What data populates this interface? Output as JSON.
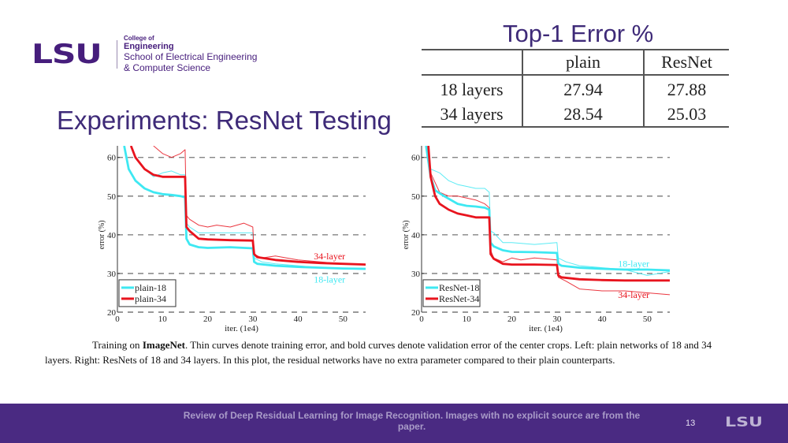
{
  "header": {
    "logo": {
      "mark": "LSU",
      "college_prefix": "College of",
      "college_name": "Engineering",
      "school_line1": "School of Electrical Engineering",
      "school_line2": "& Computer Science"
    },
    "slide_title": "Experiments: ResNet Testing"
  },
  "table": {
    "title": "Top-1 Error %",
    "columns": [
      "",
      "plain",
      "ResNet"
    ],
    "rows": [
      {
        "label": "18 layers",
        "plain": "27.94",
        "resnet": "27.88"
      },
      {
        "label": "34 layers",
        "plain": "28.54",
        "resnet": "25.03"
      }
    ],
    "bold_cell": "34 layers / ResNet"
  },
  "colors": {
    "brand_purple": "#461d7c",
    "footer_bg": "#4a2a82",
    "series_18": "#3ee8f2",
    "series_34": "#e8141e"
  },
  "chart_data": [
    {
      "type": "line",
      "title": "",
      "xlabel": "iter. (1e4)",
      "ylabel": "error (%)",
      "xlim": [
        0,
        55
      ],
      "ylim": [
        20,
        63
      ],
      "x_ticks": [
        0,
        10,
        20,
        30,
        40,
        50
      ],
      "y_ticks": [
        20,
        30,
        40,
        50,
        60
      ],
      "grid": "horizontal dashed",
      "legend": {
        "placement": "bottom-left",
        "entries": [
          "plain-18",
          "plain-34"
        ]
      },
      "annotations": [
        {
          "text": "34-layer",
          "x": 47,
          "y": 34.5,
          "color": "#e8141e"
        },
        {
          "text": "18-layer",
          "x": 47,
          "y": 28.5,
          "color": "#3ee8f2"
        }
      ],
      "series": [
        {
          "name": "plain-18 (val)",
          "style": "bold",
          "color": "#3ee8f2",
          "x": [
            1.5,
            2.5,
            4,
            6,
            8,
            10,
            12,
            14,
            15,
            15.3,
            16,
            18,
            20,
            25,
            30,
            30.3,
            31,
            35,
            40,
            45,
            50,
            55
          ],
          "y": [
            63,
            57,
            54,
            52,
            51,
            50.5,
            50.3,
            50,
            49.7,
            39,
            37.5,
            36.8,
            36.6,
            36.8,
            36.5,
            33,
            32.5,
            32,
            31.7,
            31.5,
            31.3,
            31.2
          ]
        },
        {
          "name": "plain-18 (train)",
          "style": "thin",
          "color": "#3ee8f2",
          "x": [
            6,
            8,
            10,
            12,
            14,
            15,
            15.3,
            16,
            18,
            20,
            25,
            30,
            30.3,
            32,
            35,
            40,
            45,
            50,
            55
          ],
          "y": [
            57,
            55,
            56,
            56.5,
            55.5,
            55.5,
            43,
            42,
            40.5,
            40.5,
            40.5,
            40.5,
            34,
            33,
            32.5,
            32,
            31.5,
            31.2,
            31
          ],
          "note": "partially hidden"
        },
        {
          "name": "plain-34 (val)",
          "style": "bold",
          "color": "#e8141e",
          "x": [
            3,
            4,
            6,
            8,
            10,
            12,
            14,
            15,
            15.3,
            16,
            18,
            20,
            25,
            30,
            30.3,
            31,
            35,
            40,
            45,
            50,
            55
          ],
          "y": [
            63,
            60,
            57,
            55.5,
            55,
            55,
            55,
            55,
            42,
            41,
            39,
            38.8,
            38.6,
            38.5,
            35,
            34.2,
            33.5,
            33,
            32.7,
            32.5,
            32.3
          ]
        },
        {
          "name": "plain-34 (train)",
          "style": "thin",
          "color": "#e8141e",
          "x": [
            8,
            10,
            12,
            14,
            15,
            15.3,
            16,
            18,
            20,
            22,
            25,
            28,
            30,
            30.3,
            32,
            35,
            40,
            45,
            50,
            55
          ],
          "y": [
            63,
            61,
            60,
            61,
            62,
            45,
            44,
            42.5,
            42,
            42.5,
            42,
            43,
            42,
            35,
            34,
            34.5,
            33.5,
            33,
            32.5,
            32.2
          ]
        }
      ]
    },
    {
      "type": "line",
      "title": "",
      "xlabel": "iter. (1e4)",
      "ylabel": "error (%)",
      "xlim": [
        0,
        55
      ],
      "ylim": [
        20,
        63
      ],
      "x_ticks": [
        0,
        10,
        20,
        30,
        40,
        50
      ],
      "y_ticks": [
        20,
        30,
        40,
        50,
        60
      ],
      "grid": "horizontal dashed",
      "legend": {
        "placement": "bottom-left",
        "entries": [
          "ResNet-18",
          "ResNet-34"
        ]
      },
      "annotations": [
        {
          "text": "18-layer",
          "x": 47,
          "y": 32.5,
          "color": "#3ee8f2"
        },
        {
          "text": "34-layer",
          "x": 47,
          "y": 24.5,
          "color": "#e8141e"
        }
      ],
      "series": [
        {
          "name": "ResNet-18 (val)",
          "style": "bold",
          "color": "#3ee8f2",
          "x": [
            1,
            2,
            3,
            5,
            8,
            10,
            12,
            14,
            15,
            15.3,
            16,
            18,
            20,
            25,
            30,
            30.3,
            31,
            35,
            40,
            45,
            50,
            55
          ],
          "y": [
            63,
            55,
            51.5,
            50,
            48,
            47.5,
            47.3,
            47,
            46.5,
            38,
            37,
            36,
            35.6,
            35.5,
            35.3,
            32.5,
            32,
            31.5,
            31.2,
            31,
            31,
            30.8
          ]
        },
        {
          "name": "ResNet-18 (train)",
          "style": "thin",
          "color": "#3ee8f2",
          "x": [
            1,
            2,
            4,
            6,
            8,
            10,
            12,
            14,
            15,
            15.3,
            16,
            18,
            20,
            25,
            30,
            30.3,
            32,
            35,
            40,
            45,
            50,
            55
          ],
          "y": [
            63,
            57,
            56,
            54,
            53,
            52.5,
            52,
            52,
            51,
            41,
            40.5,
            38,
            38,
            37.5,
            38,
            34,
            33,
            32,
            31.5,
            31,
            29.5,
            30.5
          ]
        },
        {
          "name": "ResNet-34 (val)",
          "style": "bold",
          "color": "#e8141e",
          "x": [
            1.5,
            2,
            3,
            4,
            6,
            8,
            10,
            12,
            14,
            15,
            15.3,
            16,
            18,
            20,
            25,
            30,
            30.3,
            31,
            35,
            40,
            45,
            50,
            55
          ],
          "y": [
            63,
            55,
            50,
            48,
            46.5,
            45.5,
            45,
            44.5,
            44.5,
            44.5,
            35,
            33.8,
            32.5,
            32.3,
            32.3,
            32.2,
            29.5,
            29,
            28.5,
            28.3,
            28.2,
            28.2,
            28.2
          ]
        },
        {
          "name": "ResNet-34 (train)",
          "style": "thin",
          "color": "#e8141e",
          "x": [
            1.5,
            2,
            4,
            6,
            8,
            10,
            12,
            14,
            15,
            15.3,
            16,
            18,
            20,
            22,
            25,
            30,
            30.3,
            32,
            35,
            40,
            45,
            50,
            55
          ],
          "y": [
            63,
            56,
            51,
            50,
            50,
            49.5,
            49,
            48,
            47,
            36,
            34,
            33,
            34,
            33.5,
            34,
            33.5,
            29,
            28,
            26,
            25.5,
            25.5,
            25,
            24.5
          ]
        }
      ]
    }
  ],
  "caption": {
    "lead": "Training on ",
    "bold": "ImageNet",
    "rest": ". Thin curves denote training error, and bold curves denote validation error of the center crops. Left: plain networks of 18 and 34 layers. Right: ResNets of 18 and 34 layers. In this plot, the residual networks have no extra parameter compared to their plain counterparts."
  },
  "footer": {
    "text": "Review of Deep Residual Learning for Image Recognition. Images with no explicit source are from the paper.",
    "page_number": "13",
    "logo": "LSU"
  }
}
